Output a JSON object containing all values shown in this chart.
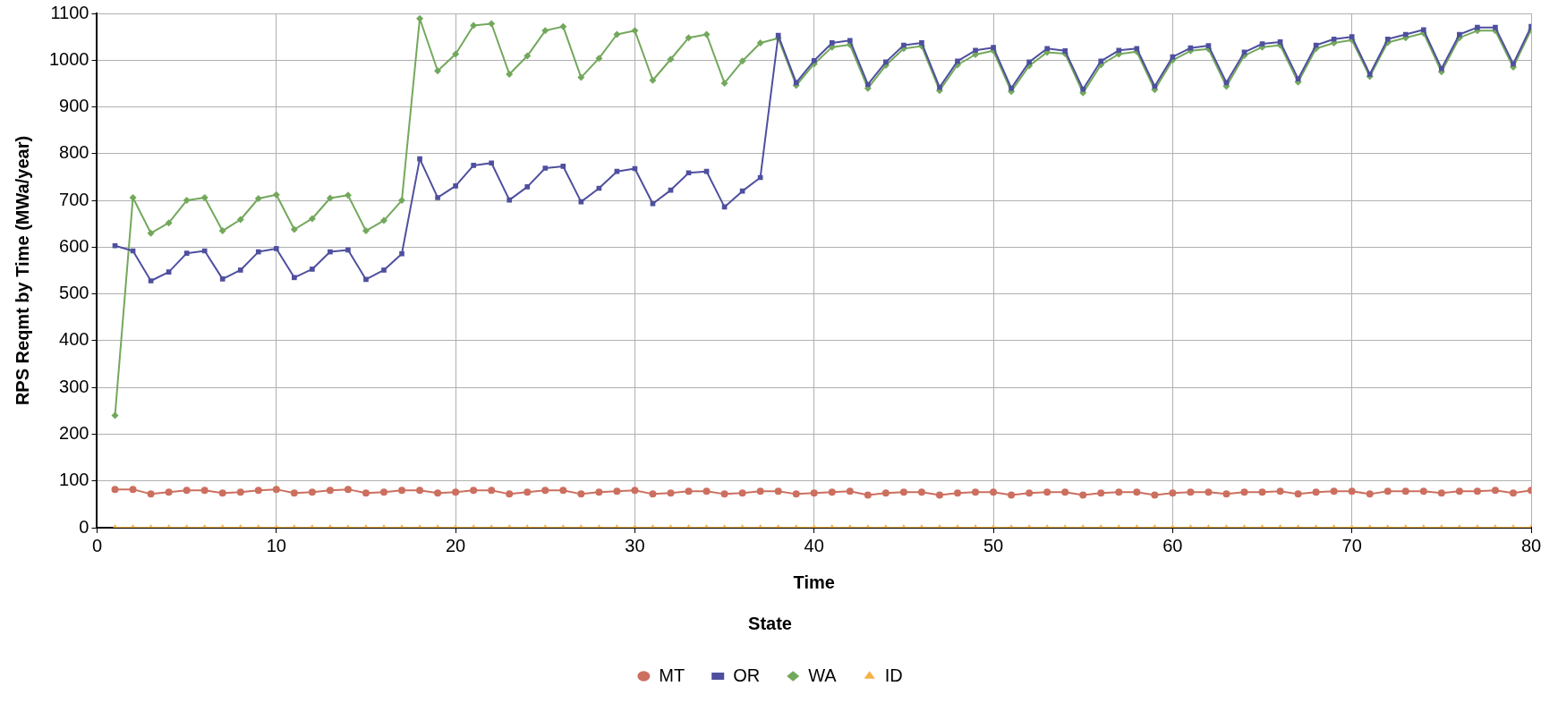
{
  "chart_data": {
    "type": "line",
    "xlabel": "Time",
    "ylabel": "RPS Reqmt by Time (MWa/year)",
    "legend_title": "State",
    "x": [
      1,
      2,
      3,
      4,
      5,
      6,
      7,
      8,
      9,
      10,
      11,
      12,
      13,
      14,
      15,
      16,
      17,
      18,
      19,
      20,
      21,
      22,
      23,
      24,
      25,
      26,
      27,
      28,
      29,
      30,
      31,
      32,
      33,
      34,
      35,
      36,
      37,
      38,
      39,
      40,
      41,
      42,
      43,
      44,
      45,
      46,
      47,
      48,
      49,
      50,
      51,
      52,
      53,
      54,
      55,
      56,
      57,
      58,
      59,
      60,
      61,
      62,
      63,
      64,
      65,
      66,
      67,
      68,
      69,
      70,
      71,
      72,
      73,
      74,
      75,
      76,
      77,
      78,
      79,
      80
    ],
    "series": [
      {
        "name": "MT",
        "color": "#cc6f5f",
        "marker": "circle",
        "values": [
          82,
          82,
          72,
          76,
          80,
          80,
          74,
          76,
          80,
          82,
          74,
          76,
          80,
          82,
          74,
          76,
          80,
          80,
          74,
          76,
          80,
          80,
          72,
          76,
          80,
          80,
          72,
          76,
          78,
          80,
          72,
          74,
          78,
          78,
          72,
          74,
          78,
          78,
          72,
          74,
          76,
          78,
          70,
          74,
          76,
          76,
          70,
          74,
          76,
          76,
          70,
          74,
          76,
          76,
          70,
          74,
          76,
          76,
          70,
          74,
          76,
          76,
          72,
          76,
          76,
          78,
          72,
          76,
          78,
          78,
          72,
          78,
          78,
          78,
          74,
          78,
          78,
          80,
          74,
          80
        ]
      },
      {
        "name": "OR",
        "color": "#4f4f9f",
        "marker": "square",
        "values": [
          603,
          592,
          528,
          547,
          587,
          592,
          532,
          551,
          590,
          597,
          535,
          553,
          590,
          594,
          531,
          551,
          586,
          789,
          706,
          731,
          775,
          780,
          701,
          729,
          769,
          773,
          697,
          726,
          762,
          768,
          693,
          722,
          759,
          762,
          686,
          720,
          749,
          1053,
          952,
          999,
          1037,
          1042,
          948,
          996,
          1032,
          1037,
          942,
          998,
          1021,
          1027,
          940,
          996,
          1025,
          1020,
          938,
          998,
          1021,
          1025,
          944,
          1007,
          1026,
          1031,
          952,
          1017,
          1035,
          1039,
          960,
          1032,
          1045,
          1050,
          970,
          1045,
          1055,
          1065,
          982,
          1055,
          1070,
          1070,
          992,
          1072
        ]
      },
      {
        "name": "WA",
        "color": "#73a85c",
        "marker": "diamond",
        "values": [
          240,
          706,
          630,
          652,
          700,
          706,
          635,
          659,
          704,
          712,
          638,
          661,
          705,
          711,
          635,
          657,
          700,
          1089,
          977,
          1013,
          1074,
          1078,
          970,
          1009,
          1063,
          1072,
          963,
          1004,
          1055,
          1063,
          957,
          1002,
          1048,
          1055,
          951,
          998,
          1037,
          1047,
          946,
          992,
          1028,
          1033,
          940,
          989,
          1025,
          1030,
          935,
          990,
          1012,
          1020,
          933,
          988,
          1017,
          1014,
          930,
          990,
          1013,
          1018,
          937,
          1000,
          1020,
          1024,
          944,
          1010,
          1028,
          1032,
          953,
          1025,
          1037,
          1043,
          965,
          1038,
          1048,
          1058,
          975,
          1048,
          1063,
          1063,
          985,
          1065
        ]
      },
      {
        "name": "ID",
        "color": "#f7b046",
        "marker": "triangle",
        "values": [
          0,
          0,
          0,
          0,
          0,
          0,
          0,
          0,
          0,
          0,
          0,
          0,
          0,
          0,
          0,
          0,
          0,
          0,
          0,
          0,
          0,
          0,
          0,
          0,
          0,
          0,
          0,
          0,
          0,
          0,
          0,
          0,
          0,
          0,
          0,
          0,
          0,
          0,
          0,
          0,
          0,
          0,
          0,
          0,
          0,
          0,
          0,
          0,
          0,
          0,
          0,
          0,
          0,
          0,
          0,
          0,
          0,
          0,
          0,
          0,
          0,
          0,
          0,
          0,
          0,
          0,
          0,
          0,
          0,
          0,
          0,
          0,
          0,
          0,
          0,
          0,
          0,
          0,
          0,
          0
        ]
      }
    ],
    "xlim": [
      0,
      80
    ],
    "xticks": [
      0,
      10,
      20,
      30,
      40,
      50,
      60,
      70,
      80
    ],
    "ylim": [
      0,
      1100
    ],
    "yticks": [
      0,
      100,
      200,
      300,
      400,
      500,
      600,
      700,
      800,
      900,
      1000,
      1100
    ],
    "grid": true,
    "legend": "bottom",
    "line_style": "solid"
  }
}
